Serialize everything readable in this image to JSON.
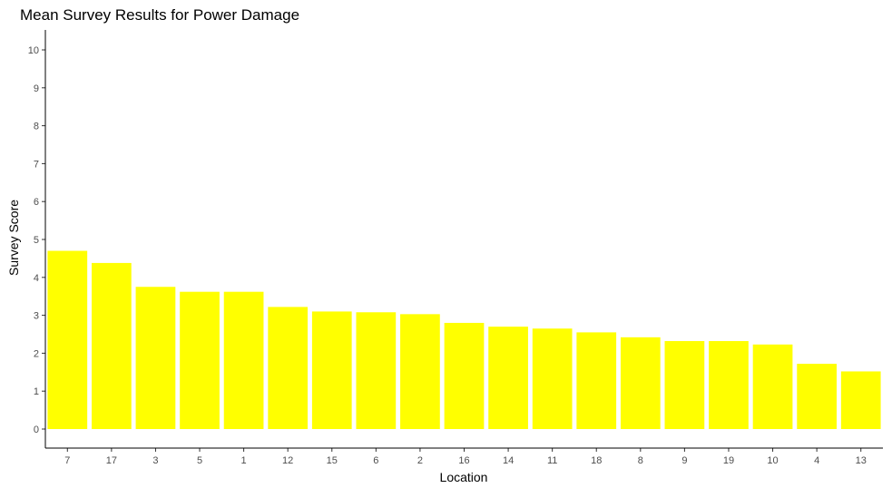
{
  "chart_data": {
    "type": "bar",
    "title": "Mean Survey Results for Power Damage",
    "xlabel": "Location",
    "ylabel": "Survey Score",
    "categories": [
      "7",
      "17",
      "3",
      "5",
      "1",
      "12",
      "15",
      "6",
      "2",
      "16",
      "14",
      "11",
      "18",
      "8",
      "9",
      "19",
      "10",
      "4",
      "13"
    ],
    "values": [
      4.7,
      4.38,
      3.75,
      3.62,
      3.62,
      3.22,
      3.1,
      3.08,
      3.03,
      2.8,
      2.7,
      2.65,
      2.55,
      2.42,
      2.32,
      2.32,
      2.23,
      1.72,
      1.52
    ],
    "ylim": [
      0,
      10
    ],
    "yticks": [
      0,
      1,
      2,
      3,
      4,
      5,
      6,
      7,
      8,
      9,
      10
    ],
    "grid": false,
    "bar_color": "#ffff00"
  }
}
